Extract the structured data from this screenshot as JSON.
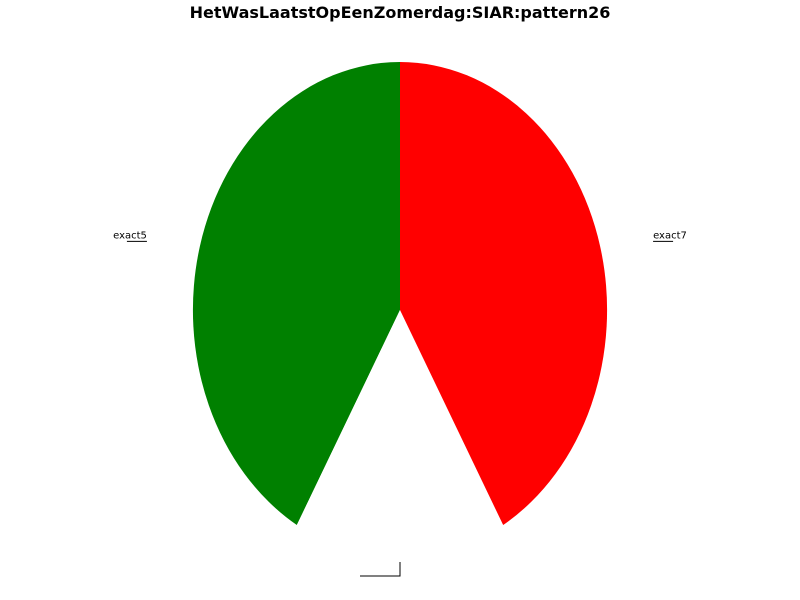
{
  "chart_data": {
    "type": "pie",
    "title": "HetWasLaatstOpEenZomerdag:SIAR:pattern26",
    "slices": [
      {
        "label": "exact5",
        "value": 41.7,
        "color": "#008000"
      },
      {
        "label": "",
        "value": 16.6,
        "color": "#ffffff"
      },
      {
        "label": "exact7",
        "value": 41.7,
        "color": "#ff0000"
      }
    ],
    "legend": false,
    "grid": false
  }
}
